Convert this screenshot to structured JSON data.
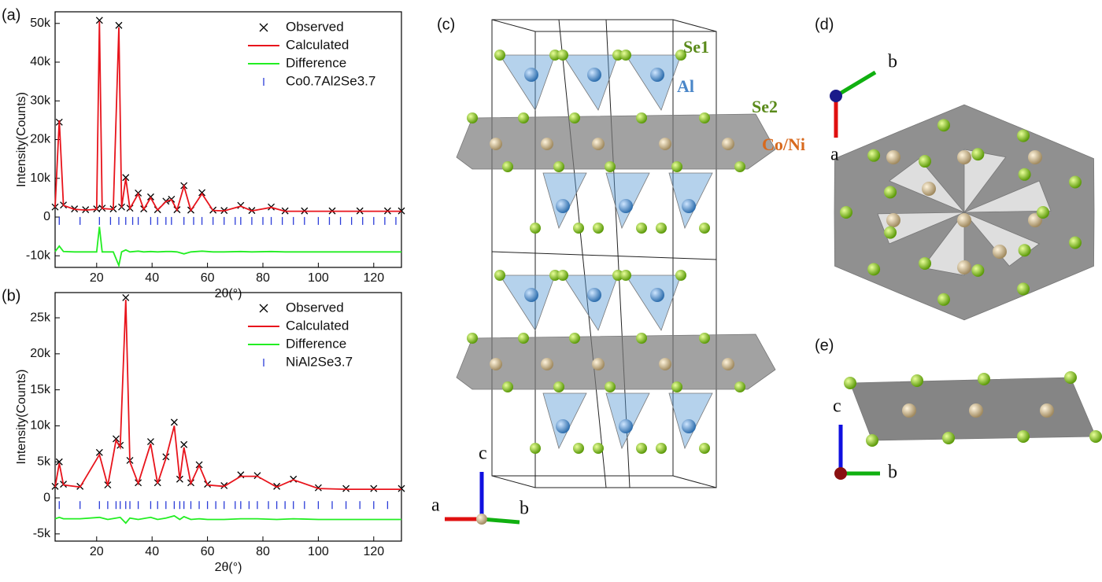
{
  "chart_data": [
    {
      "type": "line",
      "panel_label": "(a)",
      "x_label": "2θ(°)",
      "y_label": "Intensity(Counts)",
      "xlim": [
        5,
        130
      ],
      "xticks": [
        20,
        40,
        60,
        80,
        100,
        120
      ],
      "ylim": [
        -13000,
        53000
      ],
      "yticks": [
        {
          "value": -10000,
          "label": "-10k"
        },
        0,
        {
          "value": 10000,
          "label": "10k"
        },
        {
          "value": 20000,
          "label": "20k"
        },
        {
          "value": 30000,
          "label": "30k"
        },
        {
          "value": 40000,
          "label": "40k"
        },
        {
          "value": 50000,
          "label": "50k"
        }
      ],
      "legend": "upper right",
      "x": [
        5,
        6.5,
        8,
        12,
        16,
        20,
        21,
        22,
        26,
        28,
        29,
        30.5,
        32,
        35,
        37,
        39.5,
        42,
        45,
        47,
        49,
        51.5,
        54,
        58,
        62,
        66,
        72,
        76,
        83,
        88,
        95,
        105,
        115,
        125,
        130
      ],
      "series": [
        {
          "name": "Observed",
          "color": "#000000",
          "style": "cross",
          "values": [
            2600,
            24500,
            3100,
            2100,
            1900,
            2100,
            50800,
            2300,
            2100,
            49500,
            2600,
            10200,
            2300,
            6200,
            2100,
            5200,
            1900,
            4100,
            4600,
            1900,
            8100,
            1800,
            6300,
            1800,
            1700,
            3000,
            1700,
            2600,
            1600,
            1600,
            1600,
            1600,
            1600,
            1600
          ]
        },
        {
          "name": "Calculated",
          "color": "#e8141c",
          "style": "line",
          "values": [
            2500,
            25000,
            3000,
            2000,
            1800,
            2000,
            50500,
            2200,
            2000,
            49000,
            2500,
            10000,
            2200,
            6000,
            2000,
            5000,
            1800,
            4000,
            4500,
            1800,
            8000,
            1700,
            6000,
            1700,
            1600,
            2800,
            1600,
            2500,
            1500,
            1500,
            1500,
            1500,
            1500,
            1500
          ]
        },
        {
          "name": "Difference",
          "color": "#22ee22",
          "style": "line",
          "values": [
            -8900,
            -7500,
            -8900,
            -9000,
            -9000,
            -9000,
            -2500,
            -9000,
            -9000,
            -12500,
            -9000,
            -8500,
            -9000,
            -8800,
            -9000,
            -8900,
            -9000,
            -8900,
            -8900,
            -9000,
            -9500,
            -9000,
            -8800,
            -9000,
            -9000,
            -8900,
            -9000,
            -8900,
            -9000,
            -9000,
            -9000,
            -9000,
            -9000,
            -9000
          ]
        },
        {
          "name": "Co0.7Al2Se3.7",
          "color": "#2a3bd8",
          "style": "tick",
          "x": [
            6.5,
            14,
            21,
            25,
            28,
            30.5,
            33,
            35,
            39.5,
            42,
            45,
            47,
            51.5,
            55,
            58,
            62,
            66,
            70,
            72,
            76,
            80,
            83,
            87,
            91,
            95,
            100,
            104,
            108,
            112,
            116,
            120,
            124,
            128
          ],
          "values": [
            -1000,
            -1000,
            -1000,
            -1000,
            -1000,
            -1000,
            -1000,
            -1000,
            -1000,
            -1000,
            -1000,
            -1000,
            -1000,
            -1000,
            -1000,
            -1000,
            -1000,
            -1000,
            -1000,
            -1000,
            -1000,
            -1000,
            -1000,
            -1000,
            -1000,
            -1000,
            -1000,
            -1000,
            -1000,
            -1000,
            -1000,
            -1000,
            -1000
          ]
        }
      ]
    },
    {
      "type": "line",
      "panel_label": "(b)",
      "x_label": "2θ(°)",
      "y_label": "Intensity(Counts)",
      "xlim": [
        5,
        130
      ],
      "xticks": [
        20,
        40,
        60,
        80,
        100,
        120
      ],
      "ylim": [
        -6000,
        28500
      ],
      "yticks": [
        {
          "value": -5000,
          "label": "-5k"
        },
        0,
        {
          "value": 5000,
          "label": "5k"
        },
        {
          "value": 10000,
          "label": "10k"
        },
        {
          "value": 15000,
          "label": "15k"
        },
        {
          "value": 20000,
          "label": "20k"
        },
        {
          "value": 25000,
          "label": "25k"
        }
      ],
      "legend": "upper right",
      "x": [
        5,
        6.5,
        8,
        14,
        21,
        24,
        27,
        28.5,
        30.5,
        32,
        35,
        39.5,
        42,
        45,
        48,
        50,
        51.5,
        54,
        57,
        60,
        66,
        72,
        78,
        85,
        91,
        100,
        110,
        120,
        130
      ],
      "series": [
        {
          "name": "Observed",
          "color": "#000000",
          "style": "cross",
          "values": [
            1600,
            5000,
            1900,
            1600,
            6300,
            1800,
            8200,
            7300,
            27800,
            5200,
            2100,
            7800,
            2100,
            5700,
            10500,
            2600,
            7400,
            2100,
            4600,
            1900,
            1700,
            3200,
            3100,
            1600,
            2600,
            1400,
            1300,
            1300,
            1300
          ]
        },
        {
          "name": "Calculated",
          "color": "#e8141c",
          "style": "line",
          "values": [
            1500,
            4800,
            1800,
            1500,
            6000,
            1700,
            8000,
            7000,
            27500,
            5000,
            2000,
            7500,
            2000,
            5500,
            10000,
            2500,
            7000,
            2000,
            4500,
            1800,
            1600,
            3000,
            3000,
            1500,
            2500,
            1300,
            1200,
            1200,
            1200
          ]
        },
        {
          "name": "Difference",
          "color": "#22ee22",
          "style": "line",
          "values": [
            -2900,
            -2700,
            -2900,
            -2900,
            -2700,
            -3000,
            -2800,
            -2700,
            -3500,
            -2800,
            -3000,
            -2700,
            -3000,
            -2800,
            -2500,
            -3000,
            -2600,
            -3000,
            -2900,
            -3000,
            -3000,
            -2900,
            -2900,
            -3000,
            -2900,
            -3000,
            -3000,
            -3000,
            -3000
          ]
        },
        {
          "name": "NiAl2Se3.7",
          "color": "#2a3bd8",
          "style": "tick",
          "x": [
            6.5,
            14,
            21,
            24,
            27,
            28.5,
            30.5,
            32,
            35,
            39.5,
            42,
            45,
            48,
            50,
            51.5,
            54,
            57,
            60,
            63,
            66,
            70,
            72,
            75,
            78,
            82,
            85,
            88,
            91,
            95,
            100,
            105,
            110,
            115,
            120,
            125
          ],
          "values": [
            -1000,
            -1000,
            -1000,
            -1000,
            -1000,
            -1000,
            -1000,
            -1000,
            -1000,
            -1000,
            -1000,
            -1000,
            -1000,
            -1000,
            -1000,
            -1000,
            -1000,
            -1000,
            -1000,
            -1000,
            -1000,
            -1000,
            -1000,
            -1000,
            -1000,
            -1000,
            -1000,
            -1000,
            -1000,
            -1000,
            -1000,
            -1000,
            -1000,
            -1000,
            -1000
          ]
        }
      ]
    }
  ],
  "structure": {
    "panel_c": "(c)",
    "panel_d": "(d)",
    "panel_e": "(e)",
    "atoms": {
      "se1": "Se1",
      "al": "Al",
      "se2": "Se2",
      "coni": "Co/Ni"
    },
    "axes_c": {
      "a": "a",
      "b": "b",
      "c": "c"
    },
    "axes_d": {
      "b": "b",
      "a": "a"
    },
    "axes_e": {
      "c": "c",
      "b": "b"
    }
  }
}
